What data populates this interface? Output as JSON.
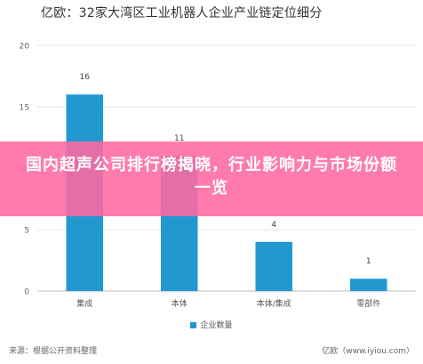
{
  "chart_title": "亿欧：32家大湾区工业机器人企业产业链定位细分",
  "banner_text": "国内超声公司排行榜揭晓，行业影响力与市场份额一览",
  "source_text": "来源：根据公开资料整理",
  "brand_text": "亿欧（www.iyiou.com）",
  "colors": {
    "bar": "#2398d0",
    "banner": "#ff69a0",
    "grid": "#e6e6e6",
    "axis": "#bbbbbb"
  },
  "chart_data": {
    "type": "bar",
    "title": "亿欧：32家大湾区工业机器人企业产业链定位细分",
    "categories": [
      "集成",
      "本体",
      "本体/集成",
      "零部件"
    ],
    "series": [
      {
        "name": "企业数量",
        "values": [
          16,
          11,
          4,
          1
        ]
      }
    ],
    "ylim": [
      0,
      20
    ],
    "yticks": [
      0,
      5,
      10,
      15,
      20
    ],
    "grid": true,
    "legend": "bottom"
  }
}
